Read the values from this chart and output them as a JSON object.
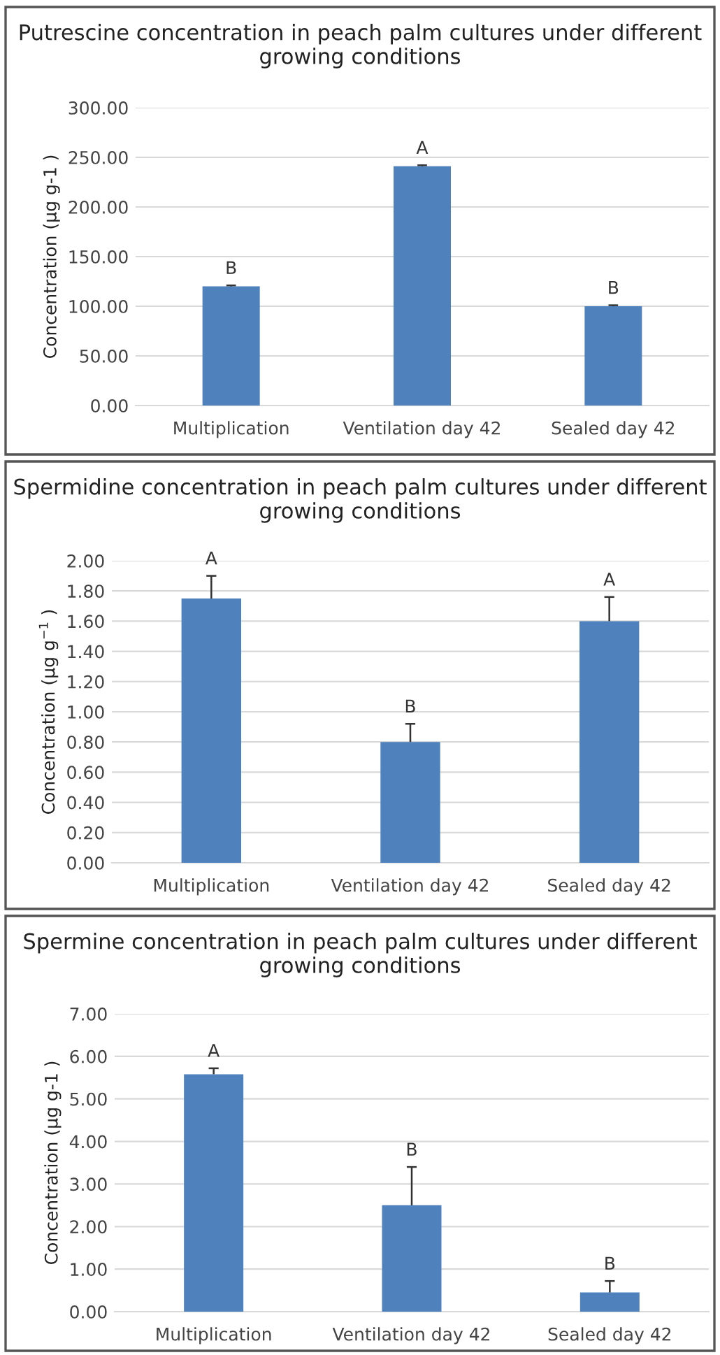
{
  "chart_data": [
    {
      "type": "bar",
      "title": "Putrescine concentration in peach palm cultures under different growing conditions",
      "ylabel": "Concentration (µg g-1 )",
      "categories": [
        "Multiplication",
        "Ventilation day 42",
        "Sealed day 42"
      ],
      "values": [
        120,
        241,
        100
      ],
      "errors": [
        [
          120,
          121
        ],
        [
          241,
          242
        ],
        [
          100,
          101
        ]
      ],
      "color": "#4f81bd",
      "ylim": [
        0,
        300
      ],
      "yticks": [
        {
          "value": 0,
          "label": "0.00"
        },
        {
          "value": 50,
          "label": "50.00"
        },
        {
          "value": 100,
          "label": "100.00"
        },
        {
          "value": 150,
          "label": "150.00"
        },
        {
          "value": 200,
          "label": "200.00"
        },
        {
          "value": 250,
          "label": "250.00"
        },
        {
          "value": 300,
          "label": "300.00"
        }
      ],
      "grid": "y",
      "annotations": [
        {
          "text": "B",
          "x": "Multiplication",
          "y": 121
        },
        {
          "text": "A",
          "x": "Ventilation day 42",
          "y": 242
        },
        {
          "text": "B",
          "x": "Sealed day 42",
          "y": 101
        }
      ]
    },
    {
      "type": "bar",
      "title": "Spermidine concentration in peach palm cultures under different growing conditions",
      "ylabel": "Concentration (µg g$^{−1}$ )",
      "categories": [
        "Multiplication",
        "Ventilation day 42",
        "Sealed day 42"
      ],
      "values": [
        1.75,
        0.8,
        1.6
      ],
      "errors": [
        [
          1.75,
          1.9
        ],
        [
          0.8,
          0.92
        ],
        [
          1.6,
          1.76
        ]
      ],
      "color": "#4f81bd",
      "ylim": [
        0,
        2
      ],
      "yticks": [
        {
          "value": 0,
          "label": "0.00"
        },
        {
          "value": 0.2,
          "label": "0.20"
        },
        {
          "value": 0.4,
          "label": "0.40"
        },
        {
          "value": 0.6,
          "label": "0.60"
        },
        {
          "value": 0.8,
          "label": "0.80"
        },
        {
          "value": 1.0,
          "label": "1.00"
        },
        {
          "value": 1.2,
          "label": "1.20"
        },
        {
          "value": 1.4,
          "label": "1.40"
        },
        {
          "value": 1.6,
          "label": "1.60"
        },
        {
          "value": 1.8,
          "label": "1.80"
        },
        {
          "value": 2.0,
          "label": "2.00"
        }
      ],
      "grid": "y",
      "annotations": [
        {
          "text": "A",
          "x": "Multiplication",
          "y": 1.9
        },
        {
          "text": "B",
          "x": "Ventilation day 42",
          "y": 0.92
        },
        {
          "text": "A",
          "x": "Sealed day 42",
          "y": 1.76
        }
      ]
    },
    {
      "type": "bar",
      "title": "Spermine concentration in peach palm cultures under different growing conditions",
      "ylabel": "Concentration (µg g-1 )",
      "categories": [
        "Multiplication",
        "Ventilation day 42",
        "Sealed day 42"
      ],
      "values": [
        5.58,
        2.5,
        0.45
      ],
      "errors": [
        [
          5.58,
          5.72
        ],
        [
          2.5,
          3.4
        ],
        [
          0.45,
          0.72
        ]
      ],
      "color": "#4f81bd",
      "ylim": [
        0,
        7
      ],
      "yticks": [
        {
          "value": 0,
          "label": "0.00"
        },
        {
          "value": 1,
          "label": "1.00"
        },
        {
          "value": 2,
          "label": "2.00"
        },
        {
          "value": 3,
          "label": "3.00"
        },
        {
          "value": 4,
          "label": "4.00"
        },
        {
          "value": 5,
          "label": "5.00"
        },
        {
          "value": 6,
          "label": "6.00"
        },
        {
          "value": 7,
          "label": "7.00"
        }
      ],
      "grid": "y",
      "annotations": [
        {
          "text": "A",
          "x": "Multiplication",
          "y": 5.72
        },
        {
          "text": "B",
          "x": "Ventilation day 42",
          "y": 3.4
        },
        {
          "text": "B",
          "x": "Sealed day 42",
          "y": 0.72
        }
      ]
    }
  ]
}
